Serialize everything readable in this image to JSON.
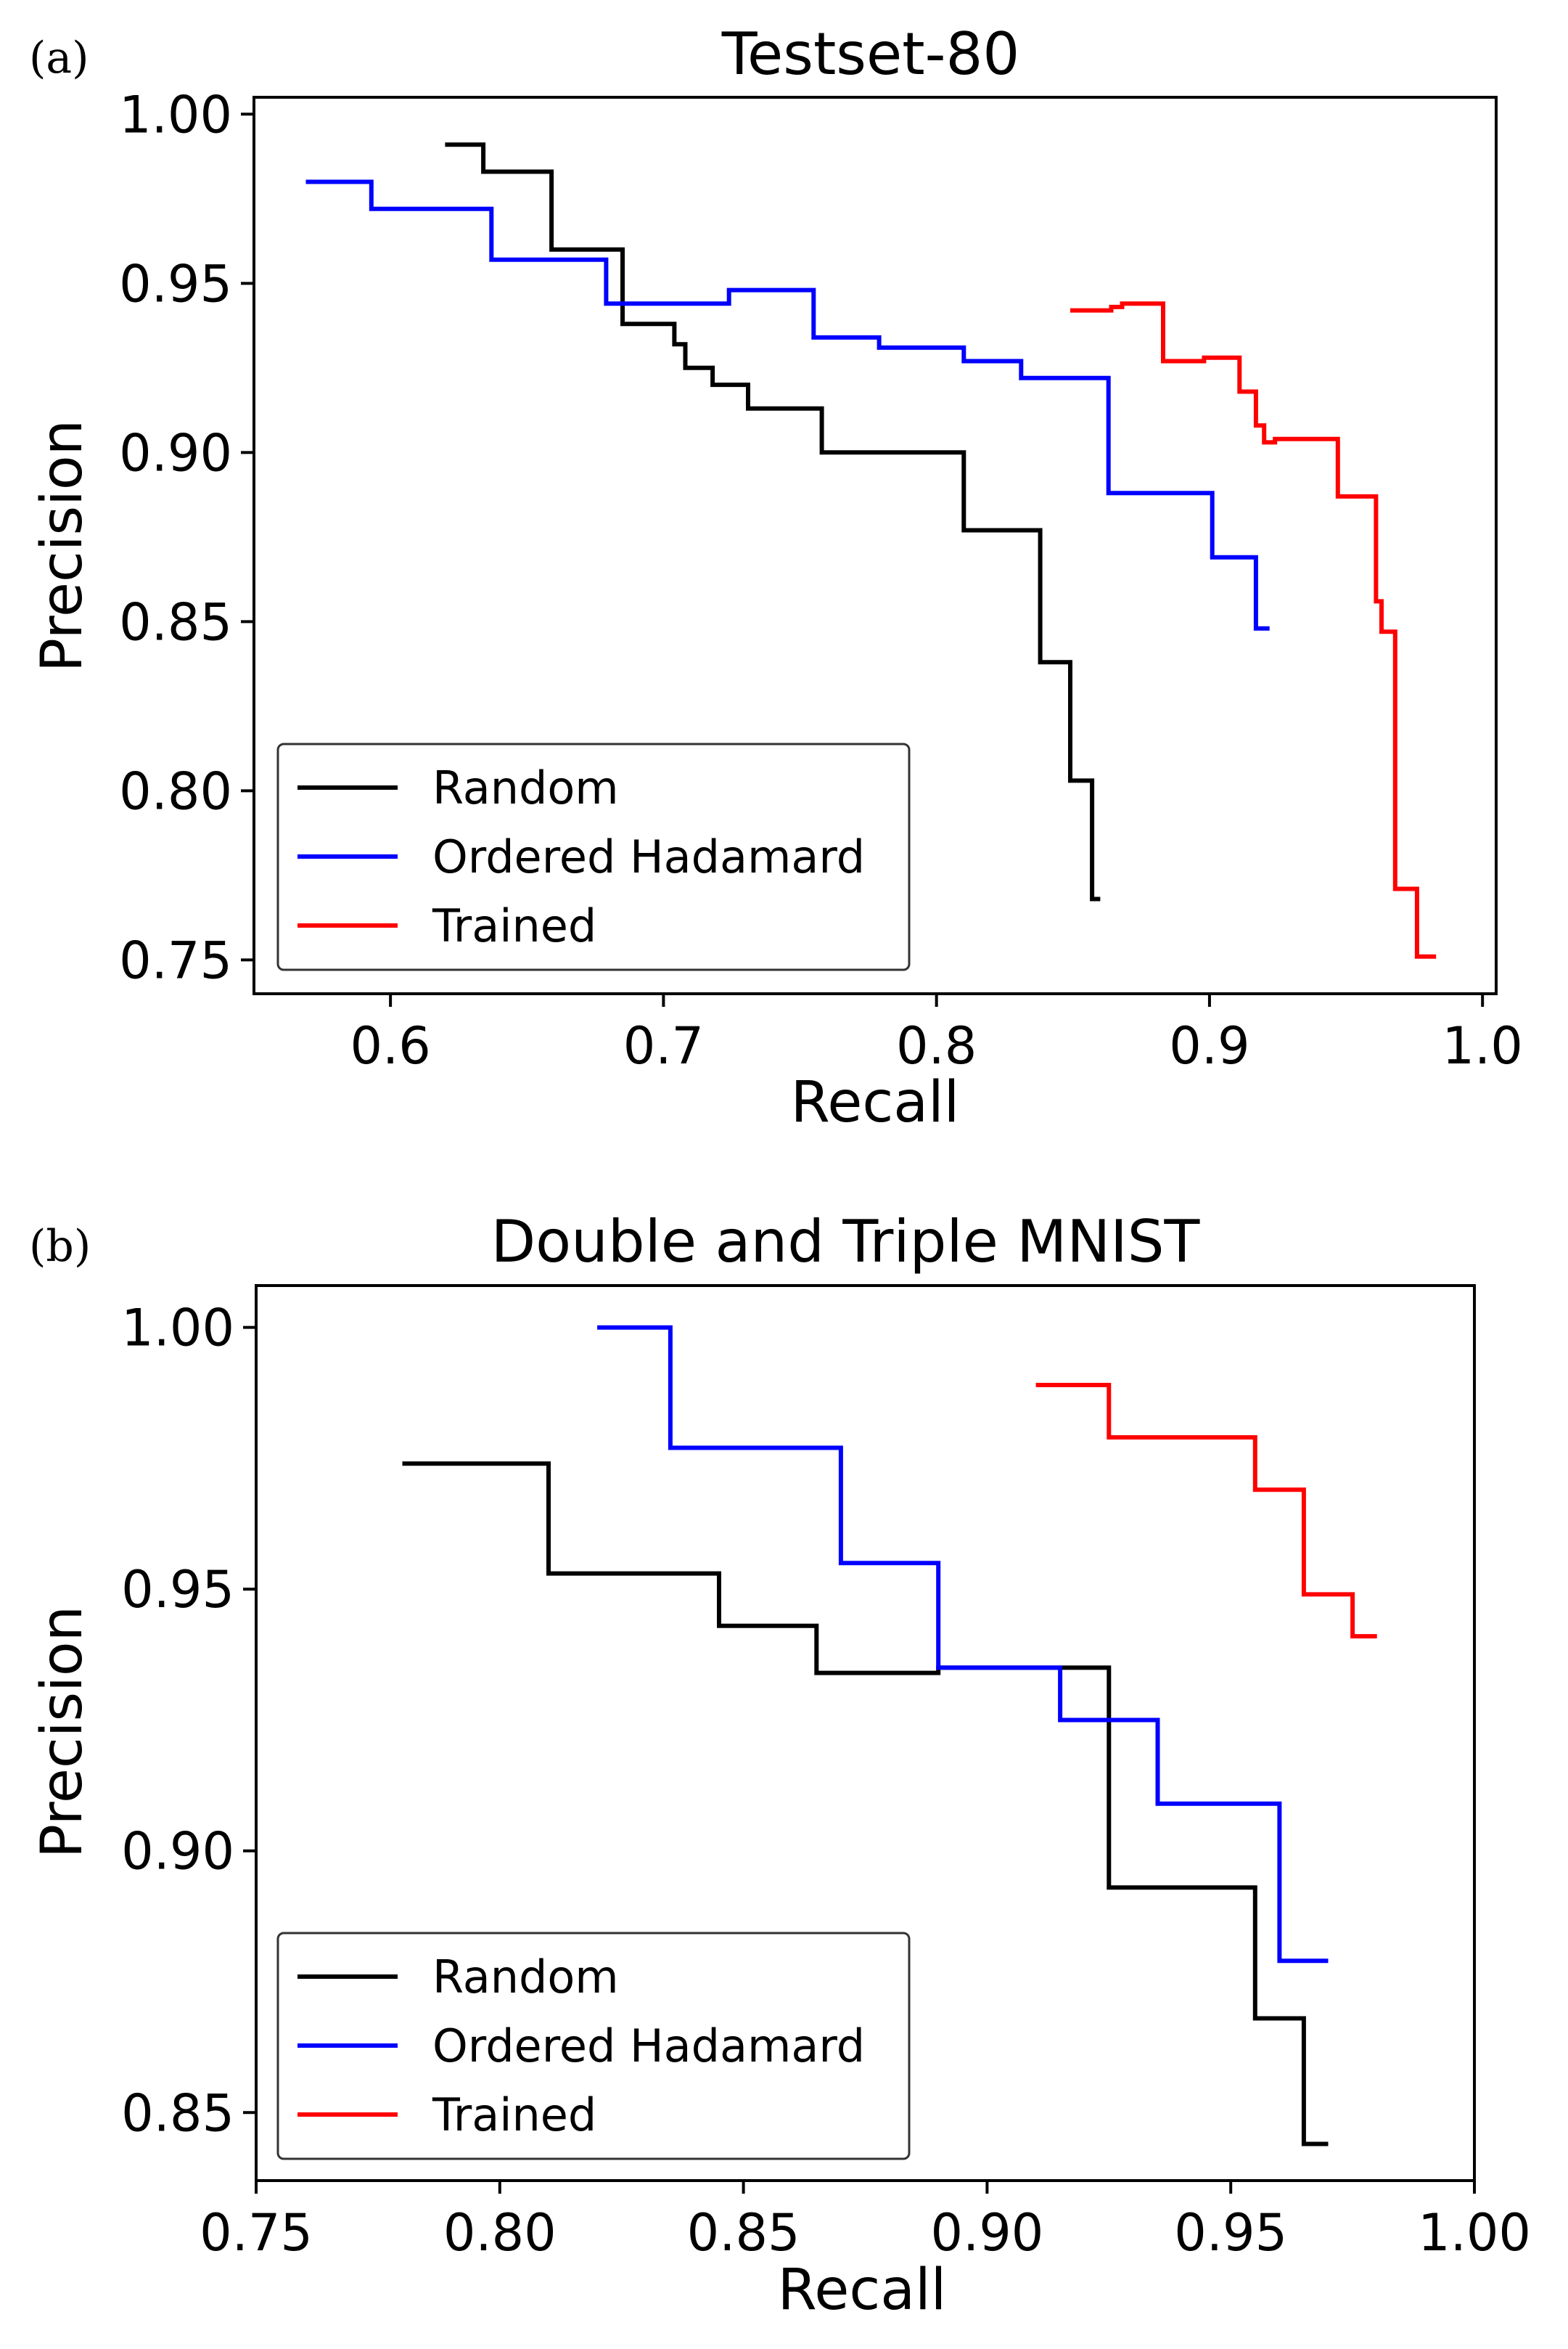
{
  "colors": {
    "Random": "#000000",
    "Ordered Hadamard": "#0000ff",
    "Trained": "#ff0000"
  },
  "chart_data": [
    {
      "type": "line",
      "panel_label": "(a)",
      "title": "Testset-80",
      "xlabel": "Recall",
      "ylabel": "Precision",
      "xlim": [
        0.55,
        1.005
      ],
      "ylim": [
        0.74,
        1.005
      ],
      "xticks": [
        0.6,
        0.7,
        0.8,
        0.9,
        1.0
      ],
      "xtick_labels": [
        "0.6",
        "0.7",
        "0.8",
        "0.9",
        "1.0"
      ],
      "yticks": [
        0.75,
        0.8,
        0.85,
        0.9,
        0.95,
        1.0
      ],
      "ytick_labels": [
        "0.75",
        "0.80",
        "0.85",
        "0.90",
        "0.95",
        "1.00"
      ],
      "legend_loc": "lower-left",
      "series": [
        {
          "name": "Random",
          "x": [
            0.62,
            0.634,
            0.634,
            0.659,
            0.659,
            0.685,
            0.685,
            0.704,
            0.704,
            0.708,
            0.708,
            0.718,
            0.718,
            0.731,
            0.731,
            0.758,
            0.758,
            0.81,
            0.81,
            0.838,
            0.838,
            0.849,
            0.849,
            0.857,
            0.857,
            0.86
          ],
          "y": [
            0.991,
            0.991,
            0.983,
            0.983,
            0.96,
            0.96,
            0.938,
            0.938,
            0.932,
            0.932,
            0.925,
            0.925,
            0.92,
            0.92,
            0.913,
            0.913,
            0.9,
            0.9,
            0.877,
            0.877,
            0.838,
            0.838,
            0.803,
            0.803,
            0.768,
            0.768
          ]
        },
        {
          "name": "Ordered Hadamard",
          "x": [
            0.569,
            0.593,
            0.593,
            0.637,
            0.637,
            0.679,
            0.679,
            0.724,
            0.724,
            0.755,
            0.755,
            0.779,
            0.779,
            0.81,
            0.81,
            0.831,
            0.831,
            0.863,
            0.863,
            0.901,
            0.901,
            0.917,
            0.917,
            0.922
          ],
          "y": [
            0.98,
            0.98,
            0.972,
            0.972,
            0.957,
            0.957,
            0.944,
            0.944,
            0.948,
            0.948,
            0.934,
            0.934,
            0.931,
            0.931,
            0.927,
            0.927,
            0.922,
            0.922,
            0.888,
            0.888,
            0.869,
            0.869,
            0.848,
            0.848
          ]
        },
        {
          "name": "Trained",
          "x": [
            0.849,
            0.864,
            0.864,
            0.868,
            0.868,
            0.883,
            0.883,
            0.898,
            0.898,
            0.911,
            0.911,
            0.917,
            0.917,
            0.92,
            0.92,
            0.924,
            0.924,
            0.929,
            0.929,
            0.947,
            0.947,
            0.961,
            0.961,
            0.963,
            0.963,
            0.968,
            0.968,
            0.976,
            0.976,
            0.983
          ],
          "y": [
            0.942,
            0.942,
            0.943,
            0.943,
            0.944,
            0.944,
            0.927,
            0.927,
            0.928,
            0.928,
            0.918,
            0.918,
            0.908,
            0.908,
            0.903,
            0.903,
            0.904,
            0.904,
            0.904,
            0.904,
            0.887,
            0.887,
            0.856,
            0.856,
            0.847,
            0.847,
            0.771,
            0.771,
            0.751,
            0.751
          ]
        }
      ]
    },
    {
      "type": "line",
      "panel_label": "(b)",
      "title": "Double and Triple MNIST",
      "xlabel": "Recall",
      "ylabel": "Precision",
      "xlim": [
        0.75,
        1.0
      ],
      "ylim": [
        0.837,
        1.008
      ],
      "xticks": [
        0.75,
        0.8,
        0.85,
        0.9,
        0.95,
        1.0
      ],
      "xtick_labels": [
        "0.75",
        "0.80",
        "0.85",
        "0.90",
        "0.95",
        "1.00"
      ],
      "yticks": [
        0.85,
        0.9,
        0.95,
        1.0
      ],
      "ytick_labels": [
        "0.85",
        "0.90",
        "0.95",
        "1.00"
      ],
      "legend_loc": "lower-left",
      "series": [
        {
          "name": "Random",
          "x": [
            0.78,
            0.81,
            0.81,
            0.845,
            0.845,
            0.865,
            0.865,
            0.89,
            0.89,
            0.925,
            0.925,
            0.955,
            0.955,
            0.965,
            0.965,
            0.97
          ],
          "y": [
            0.974,
            0.974,
            0.953,
            0.953,
            0.943,
            0.943,
            0.934,
            0.934,
            0.935,
            0.935,
            0.893,
            0.893,
            0.868,
            0.868,
            0.844,
            0.844
          ]
        },
        {
          "name": "Ordered Hadamard",
          "x": [
            0.82,
            0.835,
            0.835,
            0.87,
            0.87,
            0.89,
            0.89,
            0.915,
            0.915,
            0.935,
            0.935,
            0.96,
            0.96,
            0.97
          ],
          "y": [
            1.0,
            1.0,
            0.977,
            0.977,
            0.955,
            0.955,
            0.935,
            0.935,
            0.925,
            0.925,
            0.909,
            0.909,
            0.879,
            0.879
          ]
        },
        {
          "name": "Trained",
          "x": [
            0.91,
            0.925,
            0.925,
            0.955,
            0.955,
            0.965,
            0.965,
            0.975,
            0.975,
            0.98
          ],
          "y": [
            0.989,
            0.989,
            0.979,
            0.979,
            0.969,
            0.969,
            0.949,
            0.949,
            0.941,
            0.941
          ]
        }
      ]
    }
  ]
}
